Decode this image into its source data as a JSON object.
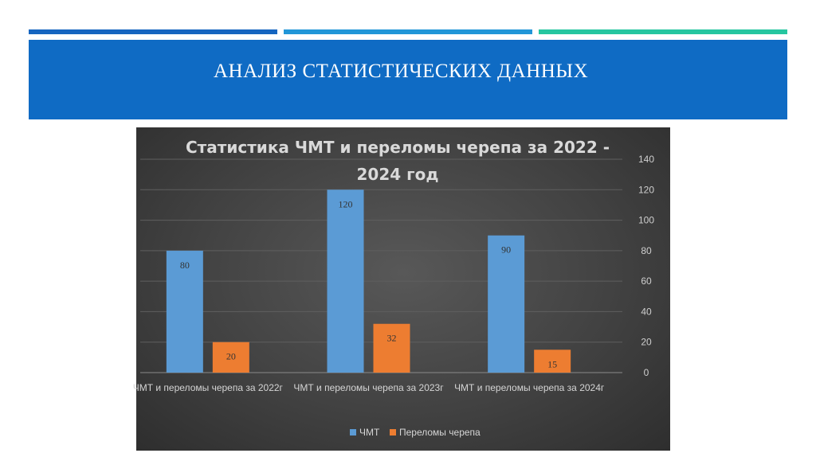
{
  "slide": {
    "title": "АНАЛИЗ СТАТИСТИЧЕСКИХ ДАННЫХ",
    "colors": {
      "header": "#0f6bc4",
      "stripe_1": "#1565c0",
      "stripe_2": "#2196d8",
      "stripe_3": "#26c6a0"
    }
  },
  "chart_data": {
    "type": "bar",
    "title_lines": [
      "Статистика ЧМТ и переломы черепа за 2022 -",
      "2024 год"
    ],
    "categories": [
      "ЧМТ и переломы черепа за 2022г",
      "ЧМТ и переломы черепа за 2023г",
      "ЧМТ и переломы черепа за 2024г"
    ],
    "series": [
      {
        "name": "ЧМТ",
        "values": [
          80,
          120,
          90
        ],
        "color": "#5b9bd5"
      },
      {
        "name": "Переломы черепа",
        "values": [
          20,
          32,
          15
        ],
        "color": "#ed7d31"
      }
    ],
    "ylim": [
      0,
      140
    ],
    "yticks": [
      0,
      20,
      40,
      60,
      80,
      100,
      120,
      140
    ],
    "yaxis_position": "right",
    "grid": true,
    "legend_position": "bottom",
    "background": "#4a4a4a"
  }
}
